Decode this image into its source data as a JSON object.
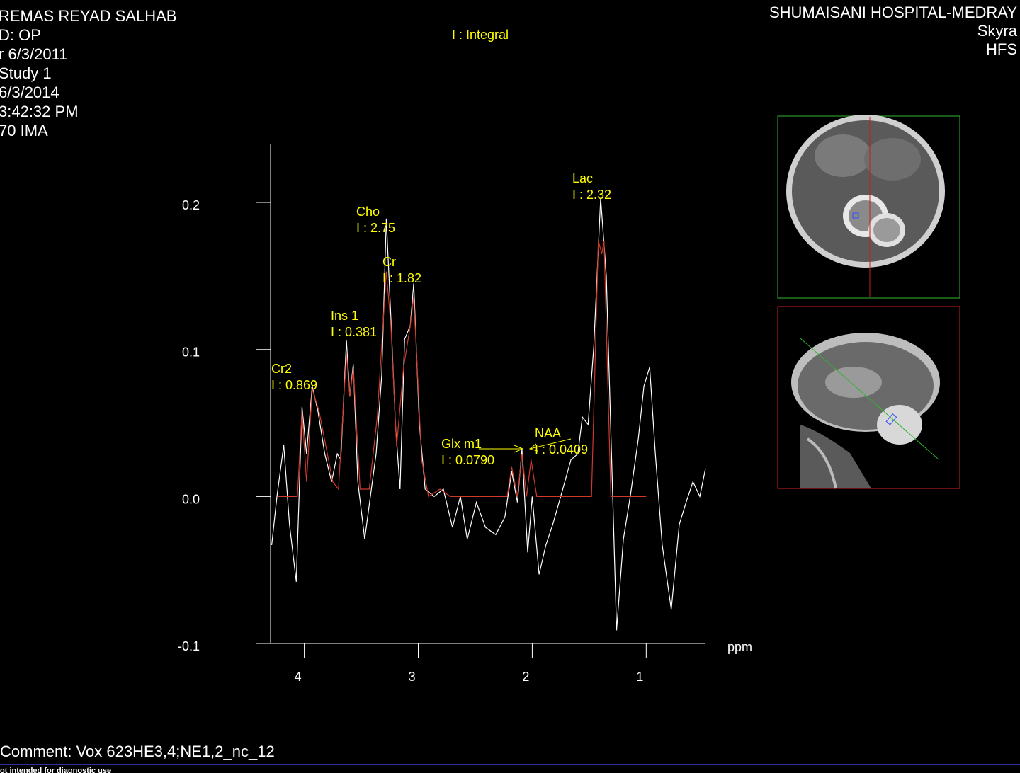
{
  "header": {
    "left": [
      "REMAS REYAD SALHAB",
      "D: OP",
      "r 6/3/2011",
      "Study 1",
      "6/3/2014",
      "3:42:32 PM",
      "70 IMA"
    ],
    "right": [
      "SHUMAISANI HOSPITAL-MEDRAY",
      "Skyra",
      "HFS"
    ]
  },
  "integral_note": "I : Integral",
  "chart_data": {
    "type": "line",
    "xlabel": "ppm",
    "xlim": [
      4.42,
      0.48
    ],
    "ylim": [
      -0.1,
      0.24
    ],
    "xticks": [
      4,
      3,
      2,
      1
    ],
    "yticks": [
      -0.1,
      {
        "value": 0,
        "label": "0.0"
      },
      0.1,
      0.2
    ],
    "series": [
      {
        "color": "#ffffff",
        "x": [
          4.286,
          4.24,
          4.18,
          4.13,
          4.07,
          4.02,
          3.98,
          3.93,
          3.88,
          3.82,
          3.76,
          3.71,
          3.68,
          3.63,
          3.6,
          3.57,
          3.53,
          3.47,
          3.42,
          3.37,
          3.32,
          3.28,
          3.24,
          3.2,
          3.16,
          3.12,
          3.07,
          3.04,
          2.99,
          2.94,
          2.86,
          2.78,
          2.7,
          2.63,
          2.57,
          2.49,
          2.41,
          2.32,
          2.24,
          2.18,
          2.13,
          2.09,
          2.04,
          2.0,
          1.94,
          1.88,
          1.82,
          1.75,
          1.66,
          1.6,
          1.56,
          1.51,
          1.46,
          1.4,
          1.35,
          1.31,
          1.26,
          1.2,
          1.14,
          1.07,
          1.02,
          0.97,
          0.92,
          0.86,
          0.78,
          0.71,
          0.65,
          0.59,
          0.53,
          0.48
        ],
        "values": [
          -0.033,
          0.0,
          0.035,
          -0.019,
          -0.058,
          0.061,
          0.029,
          0.075,
          0.058,
          0.029,
          0.01,
          0.029,
          0.025,
          0.106,
          0.068,
          0.09,
          0.01,
          -0.029,
          0.0,
          0.029,
          0.083,
          0.189,
          0.121,
          0.049,
          0.005,
          0.107,
          0.116,
          0.145,
          0.049,
          0.005,
          0.0,
          0.005,
          -0.021,
          0.0,
          -0.029,
          -0.004,
          -0.021,
          -0.026,
          -0.014,
          0.017,
          -0.004,
          0.032,
          -0.038,
          0.0,
          -0.053,
          -0.033,
          -0.019,
          0.0,
          0.025,
          0.029,
          0.054,
          0.049,
          0.102,
          0.203,
          0.15,
          0.044,
          -0.091,
          -0.029,
          0.0,
          0.039,
          0.075,
          0.088,
          0.029,
          -0.033,
          -0.077,
          -0.019,
          -0.004,
          0.01,
          0.0,
          0.019
        ]
      },
      {
        "color": "#d03a2a",
        "x": [
          4.23,
          4.06,
          4.02,
          3.98,
          3.93,
          3.87,
          3.81,
          3.75,
          3.7,
          3.63,
          3.6,
          3.57,
          3.51,
          3.43,
          3.36,
          3.28,
          3.24,
          3.19,
          3.13,
          3.07,
          3.04,
          2.97,
          2.91,
          2.81,
          2.72,
          2.22,
          2.18,
          2.13,
          2.09,
          2.05,
          2.01,
          1.96,
          1.48,
          1.42,
          1.39,
          1.37,
          1.31,
          1.0
        ],
        "values": [
          0,
          0,
          0.058,
          0.01,
          0.073,
          0.058,
          0.034,
          0.01,
          0.005,
          0.097,
          0.068,
          0.087,
          0.005,
          0.005,
          0.054,
          0.153,
          0.116,
          0.034,
          0.087,
          0.116,
          0.136,
          0.025,
          0.0,
          0.005,
          0,
          0,
          0.02,
          0,
          0.029,
          0,
          0.025,
          0,
          0,
          0.174,
          0.165,
          0.174,
          0,
          0
        ]
      }
    ],
    "annotations": [
      {
        "label": "Cr2",
        "integral": "I : 0.869"
      },
      {
        "label": "Ins 1",
        "integral": "I : 0.381"
      },
      {
        "label": "Cho",
        "integral": "I : 2.75"
      },
      {
        "label": "Cr",
        "integral": "I : 1.82"
      },
      {
        "label": "Glx m1",
        "integral": "I : 0.0790"
      },
      {
        "label": "NAA",
        "integral": "I : 0.0409"
      },
      {
        "label": "Lac",
        "integral": "I : 2.32"
      }
    ]
  },
  "comment": "Comment: Vox 623HE3,4;NE1,2_nc_12",
  "footer": "ot intended for diagnostic use"
}
